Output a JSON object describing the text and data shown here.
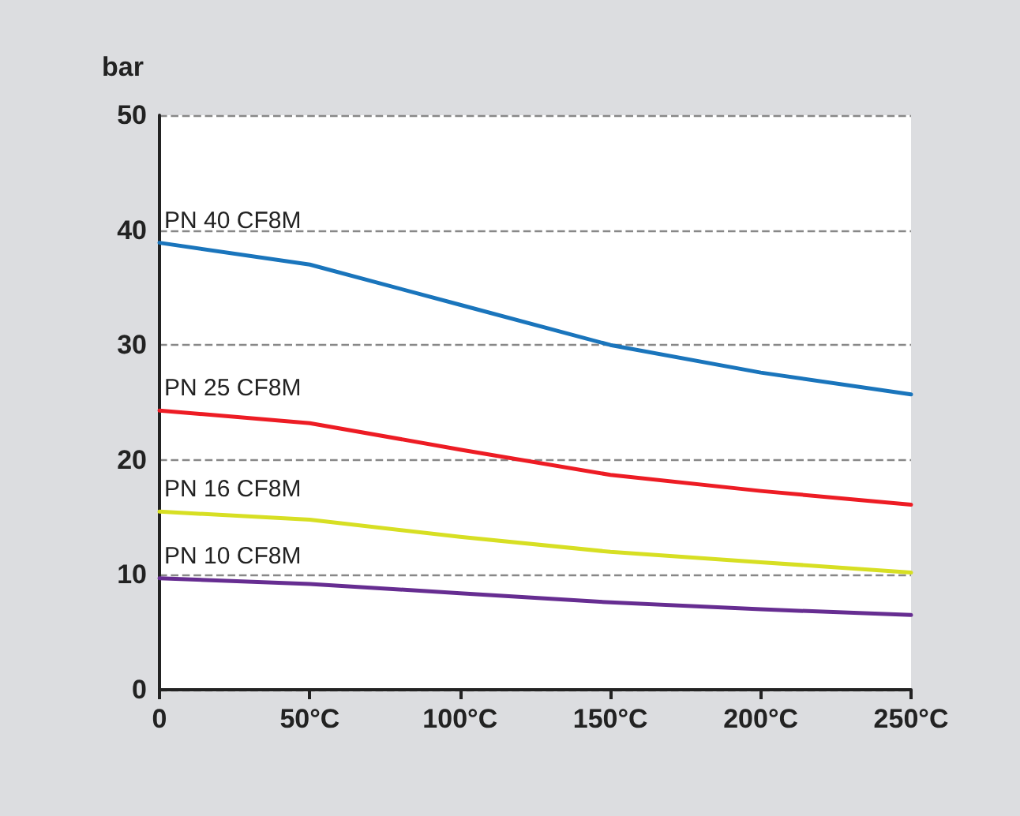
{
  "chart_data": {
    "type": "line",
    "ylabel": "bar",
    "x": [
      0,
      50,
      100,
      150,
      200,
      250
    ],
    "series": [
      {
        "name": "PN 40 CF8M",
        "color": "#1a75bc",
        "values": [
          38.9,
          37.0,
          33.5,
          30.0,
          27.6,
          25.7
        ]
      },
      {
        "name": "PN 25 CF8M",
        "color": "#ed1c24",
        "values": [
          24.3,
          23.2,
          20.9,
          18.7,
          17.3,
          16.1
        ]
      },
      {
        "name": "PN 16 CF8M",
        "color": "#d7df23",
        "values": [
          15.5,
          14.8,
          13.3,
          12.0,
          11.1,
          10.2
        ]
      },
      {
        "name": "PN 10 CF8M",
        "color": "#662d91",
        "values": [
          9.7,
          9.2,
          8.4,
          7.6,
          7.0,
          6.5
        ]
      }
    ],
    "xlim": [
      0,
      250
    ],
    "xticks": [
      0,
      {
        "value": 50,
        "label": "50°C"
      },
      {
        "value": 100,
        "label": "100°C"
      },
      {
        "value": 150,
        "label": "150°C"
      },
      {
        "value": 200,
        "label": "200°C"
      },
      {
        "value": 250,
        "label": "250°C"
      }
    ],
    "ylim": [
      0,
      50
    ],
    "yticks": [
      0,
      10,
      20,
      30,
      40,
      50
    ],
    "grid": "y",
    "marker": "none",
    "line_style": "solid",
    "legend": false
  }
}
